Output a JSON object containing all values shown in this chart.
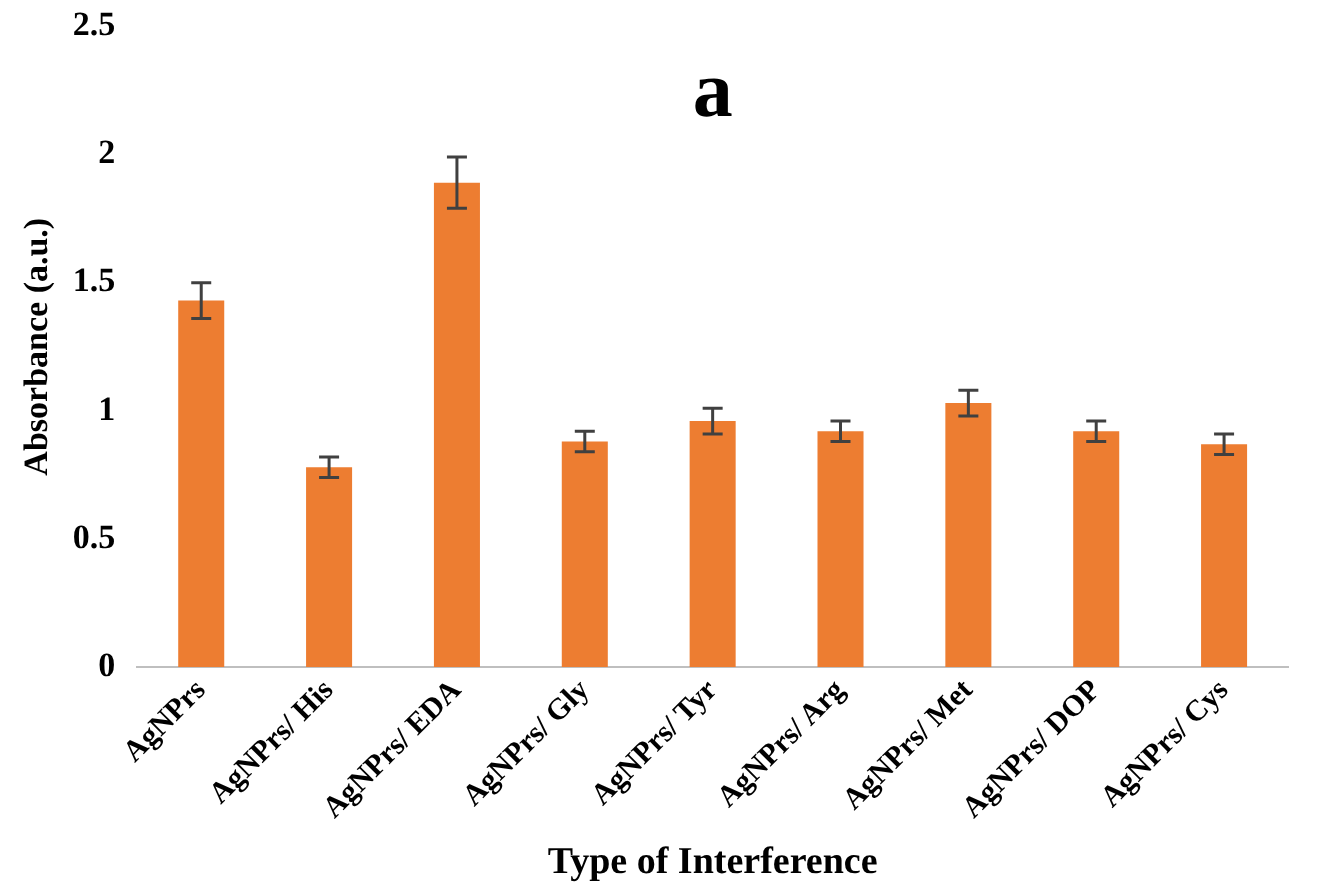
{
  "chart_data": {
    "type": "bar",
    "xlabel": "Type of Interference",
    "ylabel": "Absorbance (a.u.)",
    "annotations": [
      "a"
    ],
    "categories": [
      "AgNPrs",
      "AgNPrs/ His",
      "AgNPrs/ EDA",
      "AgNPrs/ Gly",
      "AgNPrs/ Tyr",
      "AgNPrs/ Arg",
      "AgNPrs/ Met",
      "AgNPrs/ DOP",
      "AgNPrs/ Cys"
    ],
    "values": [
      1.43,
      0.78,
      1.89,
      0.88,
      0.96,
      0.92,
      1.03,
      0.92,
      0.87
    ],
    "errors": [
      0.07,
      0.04,
      0.1,
      0.04,
      0.05,
      0.04,
      0.05,
      0.04,
      0.04
    ],
    "color": "#ed7d31",
    "ylim": [
      0,
      2.5
    ],
    "yticks": [
      0,
      0.5,
      1,
      1.5,
      2,
      2.5
    ],
    "grid": false,
    "legend": false
  }
}
